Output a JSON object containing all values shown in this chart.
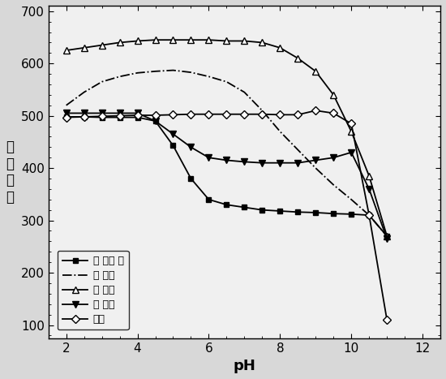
{
  "title": "",
  "xlabel": "pH",
  "ylabel": "荧\n光\n强\n度",
  "xlim": [
    1.5,
    12.5
  ],
  "ylim": [
    75,
    710
  ],
  "yticks": [
    100,
    200,
    300,
    400,
    500,
    600,
    700
  ],
  "xticks": [
    2,
    4,
    6,
    8,
    10,
    12
  ],
  "plot_bg": "#f0f0f0",
  "fig_bg": "#d8d8d8",
  "series": [
    {
      "key": "blank_probe",
      "label": "空 白探 针",
      "color": "#000000",
      "linestyle": "-",
      "marker": "s",
      "markerfacecolor": "#000000",
      "markersize": 5,
      "x": [
        2.0,
        2.5,
        3.0,
        3.5,
        4.0,
        4.5,
        5.0,
        5.5,
        6.0,
        6.5,
        7.0,
        7.5,
        8.0,
        8.5,
        9.0,
        9.5,
        10.0,
        10.5,
        11.0
      ],
      "y": [
        498,
        498,
        497,
        497,
        497,
        490,
        443,
        380,
        340,
        330,
        325,
        320,
        318,
        316,
        315,
        313,
        312,
        310,
        270
      ]
    },
    {
      "key": "tartaric_acid",
      "label": "酒 石酸",
      "color": "#000000",
      "linestyle": "-.",
      "marker": null,
      "markerfacecolor": null,
      "markersize": 0,
      "x": [
        2.0,
        2.5,
        3.0,
        3.5,
        4.0,
        4.5,
        5.0,
        5.5,
        6.0,
        6.5,
        7.0,
        7.5,
        8.0,
        8.5,
        9.0,
        9.5,
        10.0,
        10.5,
        11.0
      ],
      "y": [
        520,
        545,
        565,
        575,
        582,
        585,
        587,
        583,
        575,
        565,
        545,
        510,
        470,
        435,
        400,
        368,
        340,
        310,
        270
      ]
    },
    {
      "key": "mandelic_acid",
      "label": "扁 桃酸",
      "color": "#000000",
      "linestyle": "-",
      "marker": "^",
      "markerfacecolor": "white",
      "markersize": 6,
      "x": [
        2.0,
        2.5,
        3.0,
        3.5,
        4.0,
        4.5,
        5.0,
        5.5,
        6.0,
        6.5,
        7.0,
        7.5,
        8.0,
        8.5,
        9.0,
        9.5,
        10.0,
        10.5,
        11.0
      ],
      "y": [
        625,
        630,
        635,
        640,
        643,
        645,
        645,
        645,
        645,
        643,
        643,
        640,
        630,
        610,
        585,
        540,
        470,
        385,
        270
      ]
    },
    {
      "key": "glucose",
      "label": "葡 萄糖",
      "color": "#000000",
      "linestyle": "-",
      "marker": "v",
      "markerfacecolor": "#000000",
      "markersize": 6,
      "x": [
        2.0,
        2.5,
        3.0,
        3.5,
        4.0,
        4.5,
        5.0,
        5.5,
        6.0,
        6.5,
        7.0,
        7.5,
        8.0,
        8.5,
        9.0,
        9.5,
        10.0,
        10.5,
        11.0
      ],
      "y": [
        505,
        505,
        505,
        505,
        505,
        490,
        465,
        440,
        420,
        415,
        412,
        410,
        410,
        410,
        415,
        420,
        430,
        360,
        265
      ]
    },
    {
      "key": "fructose",
      "label": "果糖",
      "color": "#000000",
      "linestyle": "-",
      "marker": "D",
      "markerfacecolor": "white",
      "markersize": 5,
      "x": [
        2.0,
        2.5,
        3.0,
        3.5,
        4.0,
        4.5,
        5.0,
        5.5,
        6.0,
        6.5,
        7.0,
        7.5,
        8.0,
        8.5,
        9.0,
        9.5,
        10.0,
        10.5,
        11.0
      ],
      "y": [
        497,
        498,
        499,
        500,
        501,
        501,
        502,
        503,
        503,
        503,
        503,
        503,
        502,
        502,
        510,
        505,
        485,
        310,
        110
      ]
    }
  ]
}
